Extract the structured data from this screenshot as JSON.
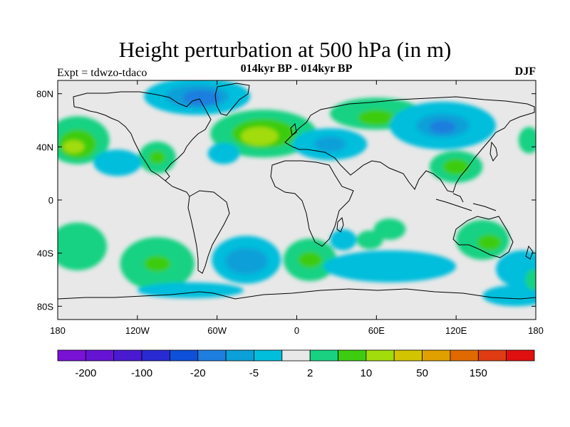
{
  "title": "Height perturbation at 500 hPa (in m)",
  "subtitle": "014kyr BP - 014kyr BP",
  "experiment": "Expt = tdwzo-tdaco",
  "season": "DJF",
  "map": {
    "lon_range": [
      -180,
      180
    ],
    "lat_range": [
      -90,
      90
    ],
    "lat_ticks": [
      {
        "v": 80,
        "label": "80N"
      },
      {
        "v": 40,
        "label": "40N"
      },
      {
        "v": 0,
        "label": "0"
      },
      {
        "v": -40,
        "label": "40S"
      },
      {
        "v": -80,
        "label": "80S"
      }
    ],
    "lon_ticks": [
      {
        "v": -180,
        "label": "180"
      },
      {
        "v": -120,
        "label": "120W"
      },
      {
        "v": -60,
        "label": "60W"
      },
      {
        "v": 0,
        "label": "0"
      },
      {
        "v": 60,
        "label": "60E"
      },
      {
        "v": 120,
        "label": "120E"
      },
      {
        "v": 180,
        "label": "180"
      }
    ],
    "background_color": "#e8e8e8"
  },
  "colorbar": {
    "colors": [
      "#7a12d6",
      "#6614d4",
      "#4a1ad0",
      "#2a2ad2",
      "#0e50d8",
      "#1e7ede",
      "#0aa0d8",
      "#00bedc",
      "#e8e8e8",
      "#18d282",
      "#3ecc10",
      "#a2dc0a",
      "#d2c400",
      "#e0a000",
      "#e06a00",
      "#e03c14",
      "#e01010"
    ],
    "labels": [
      {
        "boundary": 1,
        "text": "-200"
      },
      {
        "boundary": 3,
        "text": "-100"
      },
      {
        "boundary": 5,
        "text": "-20"
      },
      {
        "boundary": 7,
        "text": "-5"
      },
      {
        "boundary": 9,
        "text": "2"
      },
      {
        "boundary": 11,
        "text": "10"
      },
      {
        "boundary": 13,
        "text": "50"
      },
      {
        "boundary": 15,
        "text": "150"
      }
    ]
  },
  "anomaly_regions": [
    {
      "name": "arctic-canada-negative",
      "lon": -75,
      "lat": 78,
      "rx": 40,
      "ry": 14,
      "level": -1
    },
    {
      "name": "arctic-canada-core",
      "lon": -75,
      "lat": 78,
      "rx": 24,
      "ry": 9,
      "level": -2
    },
    {
      "name": "arctic-canada-core2",
      "lon": -72,
      "lat": 77,
      "rx": 14,
      "ry": 6,
      "level": -3
    },
    {
      "name": "north-pacific-positive",
      "lon": -165,
      "lat": 45,
      "rx": 24,
      "ry": 18,
      "level": 1
    },
    {
      "name": "north-pacific-positive-core",
      "lon": -165,
      "lat": 42,
      "rx": 14,
      "ry": 11,
      "level": 2
    },
    {
      "name": "north-pacific-positive-core2",
      "lon": -168,
      "lat": 40,
      "rx": 8,
      "ry": 5,
      "level": 3
    },
    {
      "name": "north-atlantic-positive",
      "lon": -25,
      "lat": 50,
      "rx": 40,
      "ry": 18,
      "level": 1
    },
    {
      "name": "north-atlantic-positive-core",
      "lon": -25,
      "lat": 50,
      "rx": 24,
      "ry": 11,
      "level": 2
    },
    {
      "name": "north-atlantic-positive-core2",
      "lon": -28,
      "lat": 48,
      "rx": 14,
      "ry": 7,
      "level": 3
    },
    {
      "name": "siberia-positive",
      "lon": 60,
      "lat": 65,
      "rx": 35,
      "ry": 12,
      "level": 1
    },
    {
      "name": "siberia-positive-core",
      "lon": 60,
      "lat": 62,
      "rx": 14,
      "ry": 6,
      "level": 2
    },
    {
      "name": "east-asia-negative",
      "lon": 110,
      "lat": 56,
      "rx": 40,
      "ry": 18,
      "level": -1
    },
    {
      "name": "east-asia-negative-core",
      "lon": 110,
      "lat": 56,
      "rx": 20,
      "ry": 9,
      "level": -2
    },
    {
      "name": "east-asia-negative-core2",
      "lon": 110,
      "lat": 55,
      "rx": 10,
      "ry": 5,
      "level": -3
    },
    {
      "name": "europe-negative",
      "lon": 25,
      "lat": 42,
      "rx": 28,
      "ry": 12,
      "level": -1
    },
    {
      "name": "europe-negative-core",
      "lon": 25,
      "lat": 42,
      "rx": 12,
      "ry": 6,
      "level": -2
    },
    {
      "name": "china-positive",
      "lon": 120,
      "lat": 25,
      "rx": 20,
      "ry": 12,
      "level": 1
    },
    {
      "name": "china-positive-core",
      "lon": 120,
      "lat": 25,
      "rx": 10,
      "ry": 6,
      "level": 2
    },
    {
      "name": "eastern-pacific-positive",
      "lon": -105,
      "lat": 32,
      "rx": 14,
      "ry": 12,
      "level": 1
    },
    {
      "name": "eastern-pacific-positive-core",
      "lon": -105,
      "lat": 32,
      "rx": 6,
      "ry": 5,
      "level": 2
    },
    {
      "name": "north-american-negative",
      "lon": -135,
      "lat": 28,
      "rx": 18,
      "ry": 10,
      "level": -1
    },
    {
      "name": "western-atlantic-negative",
      "lon": -55,
      "lat": 35,
      "rx": 12,
      "ry": 8,
      "level": -1
    },
    {
      "name": "south-pacific-positive-west",
      "lon": -165,
      "lat": -35,
      "rx": 22,
      "ry": 18,
      "level": 1
    },
    {
      "name": "south-pacific-positive",
      "lon": -105,
      "lat": -48,
      "rx": 28,
      "ry": 20,
      "level": 1
    },
    {
      "name": "south-pacific-positive-core",
      "lon": -105,
      "lat": -48,
      "rx": 10,
      "ry": 6,
      "level": 2
    },
    {
      "name": "south-atlantic-negative",
      "lon": -38,
      "lat": -45,
      "rx": 26,
      "ry": 18,
      "level": -1
    },
    {
      "name": "south-atlantic-negative-core",
      "lon": -38,
      "lat": -46,
      "rx": 16,
      "ry": 10,
      "level": -2
    },
    {
      "name": "south-atlantic-positive",
      "lon": 10,
      "lat": -45,
      "rx": 20,
      "ry": 16,
      "level": 1
    },
    {
      "name": "south-atlantic-positive-core",
      "lon": 10,
      "lat": -45,
      "rx": 9,
      "ry": 6,
      "level": 2
    },
    {
      "name": "indian-ocean-negative",
      "lon": 70,
      "lat": -50,
      "rx": 50,
      "ry": 12,
      "level": -1
    },
    {
      "name": "mozambique-negative",
      "lon": 35,
      "lat": -30,
      "rx": 10,
      "ry": 8,
      "level": -1
    },
    {
      "name": "indian-ocean-positive",
      "lon": 70,
      "lat": -22,
      "rx": 12,
      "ry": 8,
      "level": 1
    },
    {
      "name": "indian-ocean-positive-2",
      "lon": 55,
      "lat": -30,
      "rx": 10,
      "ry": 7,
      "level": 1
    },
    {
      "name": "australia-positive",
      "lon": 140,
      "lat": -30,
      "rx": 20,
      "ry": 15,
      "level": 1
    },
    {
      "name": "australia-positive-core",
      "lon": 145,
      "lat": -32,
      "rx": 9,
      "ry": 6,
      "level": 2
    },
    {
      "name": "south-west-pacific-negative",
      "lon": 170,
      "lat": -52,
      "rx": 20,
      "ry": 14,
      "level": -1
    },
    {
      "name": "southern-ocean-negative",
      "lon": -80,
      "lat": -68,
      "rx": 40,
      "ry": 6,
      "level": -1
    },
    {
      "name": "south-pacific-far-west-negative",
      "lon": 165,
      "lat": -72,
      "rx": 25,
      "ry": 8,
      "level": -1
    },
    {
      "name": "south-pacific-far-west-positive",
      "lon": 178,
      "lat": -60,
      "rx": 6,
      "ry": 8,
      "level": 1
    },
    {
      "name": "north-pacific-east-positive",
      "lon": 175,
      "lat": 45,
      "rx": 8,
      "ry": 10,
      "level": 1
    }
  ]
}
